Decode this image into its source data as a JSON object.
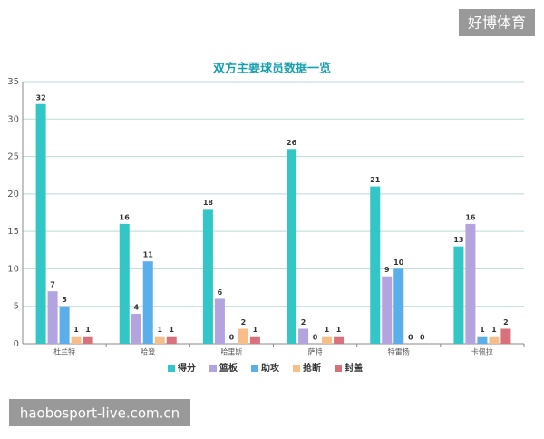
{
  "chart_data": {
    "type": "bar",
    "title": "双方主要球员数据一览",
    "categories": [
      "杜兰特",
      "哈登",
      "哈里斯",
      "萨特",
      "特雷杨",
      "卡佩拉"
    ],
    "series": [
      {
        "name": "得分",
        "color": "#33c6c6",
        "values": [
          32,
          16,
          18,
          26,
          21,
          13
        ]
      },
      {
        "name": "篮板",
        "color": "#b3a3de",
        "values": [
          7,
          4,
          6,
          2,
          9,
          16
        ]
      },
      {
        "name": "助攻",
        "color": "#5aafea",
        "values": [
          5,
          11,
          0,
          0,
          10,
          1
        ]
      },
      {
        "name": "抢断",
        "color": "#f8be8a",
        "values": [
          1,
          1,
          2,
          1,
          0,
          1
        ]
      },
      {
        "name": "封盖",
        "color": "#d9717c",
        "values": [
          1,
          1,
          1,
          1,
          0,
          2
        ]
      }
    ],
    "ylim": [
      0,
      35
    ],
    "yticks": [
      0,
      5,
      10,
      15,
      20,
      25,
      30,
      35
    ],
    "grid": true,
    "legend": "bottom"
  },
  "watermark": {
    "brand": "好博体育",
    "site": "haobosport-live.com.cn"
  }
}
